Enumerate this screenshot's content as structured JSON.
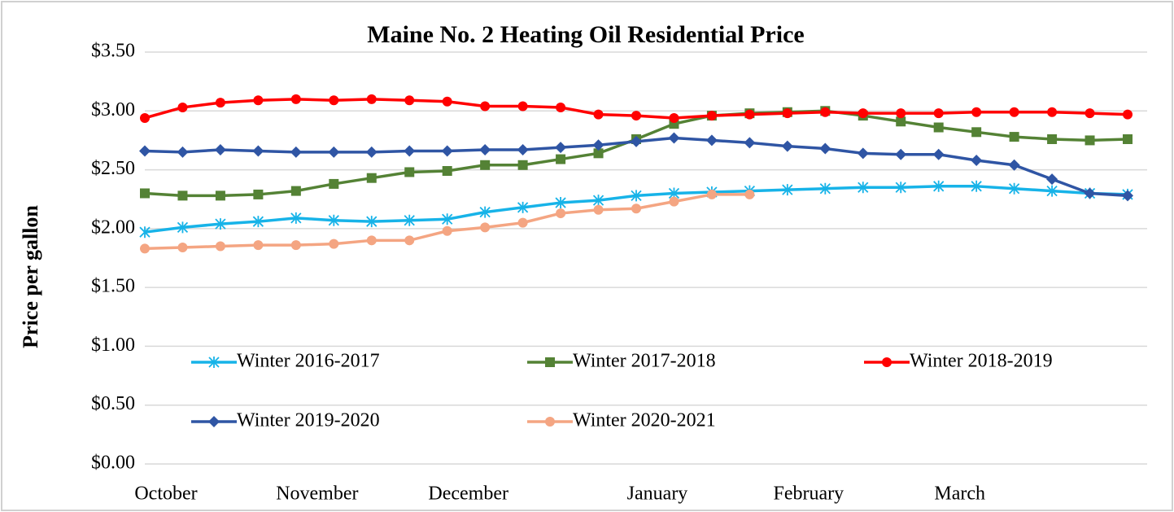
{
  "chart_data": {
    "type": "line",
    "title": "Maine No. 2 Heating Oil Residential Price",
    "y_label": "Price per gallon",
    "categories": [
      "October",
      null,
      null,
      null,
      "November",
      null,
      null,
      null,
      "December",
      null,
      null,
      null,
      null,
      "January",
      null,
      null,
      null,
      "February",
      null,
      null,
      null,
      "March",
      null,
      null,
      null,
      null,
      null
    ],
    "ylim": [
      0,
      3.5
    ],
    "yticks": [
      {
        "value": 0,
        "label": "$0.00"
      },
      {
        "value": 0.5,
        "label": "$0.50"
      },
      {
        "value": 1,
        "label": "$1.00"
      },
      {
        "value": 1.5,
        "label": "$1.50"
      },
      {
        "value": 2,
        "label": "$2.00"
      },
      {
        "value": 2.5,
        "label": "$2.50"
      },
      {
        "value": 3,
        "label": "$3.00"
      },
      {
        "value": 3.5,
        "label": "$3.50"
      }
    ],
    "grid": true,
    "series": [
      {
        "name": "Winter 2016-2017",
        "color": "#17b3e8",
        "marker": "asterisk",
        "values": [
          1.97,
          2.01,
          2.04,
          2.06,
          2.09,
          2.07,
          2.06,
          2.07,
          2.08,
          2.14,
          2.18,
          2.22,
          2.24,
          2.28,
          2.3,
          2.31,
          2.32,
          2.33,
          2.34,
          2.35,
          2.35,
          2.36,
          2.36,
          2.34,
          2.32,
          2.3,
          2.29
        ]
      },
      {
        "name": "Winter 2017-2018",
        "color": "#548235",
        "marker": "square",
        "values": [
          2.3,
          2.28,
          2.28,
          2.29,
          2.32,
          2.38,
          2.43,
          2.48,
          2.49,
          2.54,
          2.54,
          2.59,
          2.64,
          2.76,
          2.89,
          2.96,
          2.98,
          2.99,
          3.0,
          2.96,
          2.91,
          2.86,
          2.82,
          2.78,
          2.76,
          2.75,
          2.76
        ]
      },
      {
        "name": "Winter 2018-2019",
        "color": "#ff0000",
        "marker": "circle",
        "values": [
          2.94,
          3.03,
          3.07,
          3.09,
          3.1,
          3.09,
          3.1,
          3.09,
          3.08,
          3.04,
          3.04,
          3.03,
          2.97,
          2.96,
          2.94,
          2.96,
          2.97,
          2.98,
          2.99,
          2.98,
          2.98,
          2.98,
          2.99,
          2.99,
          2.99,
          2.98,
          2.97
        ]
      },
      {
        "name": "Winter 2019-2020",
        "color": "#2f55a4",
        "marker": "diamond",
        "values": [
          2.66,
          2.65,
          2.67,
          2.66,
          2.65,
          2.65,
          2.65,
          2.66,
          2.66,
          2.67,
          2.67,
          2.69,
          2.71,
          2.74,
          2.77,
          2.75,
          2.73,
          2.7,
          2.68,
          2.64,
          2.63,
          2.63,
          2.58,
          2.54,
          2.42,
          2.3,
          2.28
        ]
      },
      {
        "name": "Winter 2020-2021",
        "color": "#f4a582",
        "marker": "circle",
        "values": [
          1.83,
          1.84,
          1.85,
          1.86,
          1.86,
          1.87,
          1.9,
          1.9,
          1.98,
          2.01,
          2.05,
          2.13,
          2.16,
          2.17,
          2.23,
          2.29,
          2.29,
          null,
          null,
          null,
          null,
          null,
          null,
          null,
          null,
          null,
          null
        ]
      }
    ]
  }
}
